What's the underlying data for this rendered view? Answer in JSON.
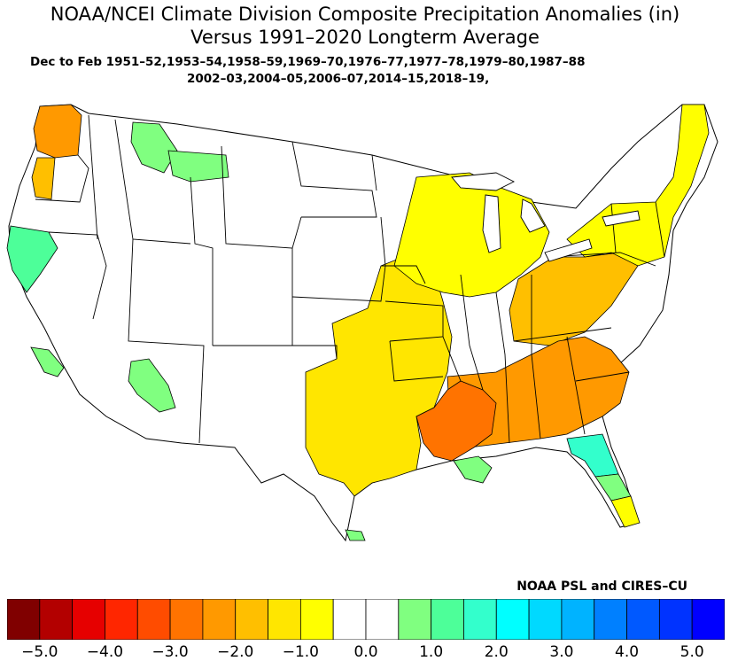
{
  "title_line1": "NOAA/NCEI Climate Division Composite Precipitation Anomalies (in)",
  "title_line2": "Versus 1991–2020 Longterm Average",
  "subtitle_line1": "Dec to Feb  1951–52,1953–54,1958–59,1969–70,1976–77,1977–78,1979–80,1987–88",
  "subtitle_line2": "2002–03,2004–05,2006–07,2014–15,2018–19,",
  "credit": "NOAA PSL and CIRES–CU",
  "legend": {
    "colors": [
      "#800000",
      "#b30000",
      "#e60000",
      "#ff2600",
      "#ff4c00",
      "#ff7300",
      "#ff9900",
      "#ffbf00",
      "#ffe600",
      "#ffff00",
      "#ffffff",
      "#ffffff",
      "#80ff80",
      "#4dff99",
      "#33ffcc",
      "#00ffff",
      "#00d9ff",
      "#00b3ff",
      "#0080ff",
      "#0059ff",
      "#0033ff",
      "#0000ff"
    ],
    "labels": [
      "−5.0",
      "−4.0",
      "−3.0",
      "−2.0",
      "−1.0",
      "0.0",
      "1.0",
      "2.0",
      "3.0",
      "4.0",
      "5.0"
    ]
  },
  "regions": [
    {
      "name": "western-washington",
      "anomaly": "-2.5",
      "color": "#ff9900"
    },
    {
      "name": "western-oregon",
      "anomaly": "-1.5",
      "color": "#ffbf00"
    },
    {
      "name": "northern-california",
      "anomaly": "1.5",
      "color": "#4dff99"
    },
    {
      "name": "southern-california",
      "anomaly": "1.0",
      "color": "#80ff80"
    },
    {
      "name": "northern-rockies",
      "anomaly": "1.0",
      "color": "#80ff80"
    },
    {
      "name": "arizona",
      "anomaly": "1.0",
      "color": "#80ff80"
    },
    {
      "name": "south-central",
      "anomaly": "-1.0",
      "color": "#ffe600"
    },
    {
      "name": "lower-mississippi",
      "anomaly": "-3.0",
      "color": "#ff7300"
    },
    {
      "name": "southeast",
      "anomaly": "-2.0",
      "color": "#ff9900"
    },
    {
      "name": "ohio-valley",
      "anomaly": "-1.5",
      "color": "#ffbf00"
    },
    {
      "name": "great-lakes",
      "anomaly": "-1.0",
      "color": "#ffff00"
    },
    {
      "name": "northeast",
      "anomaly": "-1.0",
      "color": "#ffff00"
    },
    {
      "name": "louisiana-coast",
      "anomaly": "1.0",
      "color": "#80ff80"
    },
    {
      "name": "north-florida",
      "anomaly": "2.5",
      "color": "#33ffcc"
    },
    {
      "name": "central-florida",
      "anomaly": "1.0",
      "color": "#80ff80"
    },
    {
      "name": "south-florida",
      "anomaly": "-1.0",
      "color": "#ffff00"
    },
    {
      "name": "south-texas",
      "anomaly": "1.0",
      "color": "#80ff80"
    }
  ]
}
